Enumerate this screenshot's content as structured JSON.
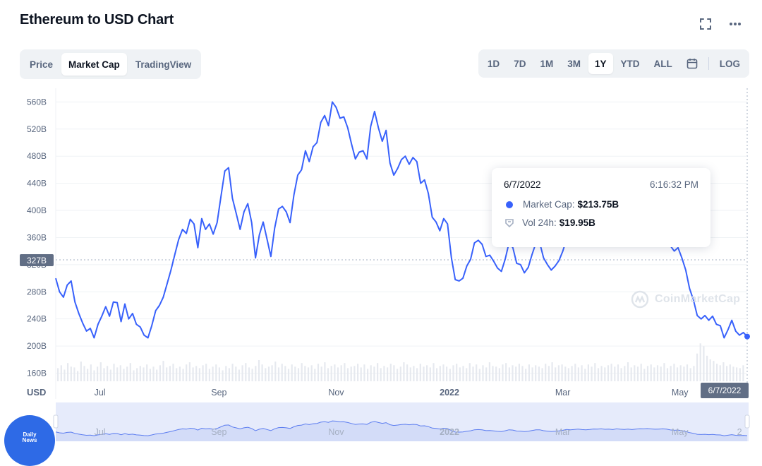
{
  "title": "Ethereum to USD Chart",
  "icons": {
    "expand": "expand-icon",
    "more": "more-icon",
    "calendar": "calendar-icon"
  },
  "view_tabs": [
    {
      "label": "Price",
      "active": false
    },
    {
      "label": "Market Cap",
      "active": true
    },
    {
      "label": "TradingView",
      "active": false
    }
  ],
  "range_tabs": [
    {
      "label": "1D",
      "active": false
    },
    {
      "label": "7D",
      "active": false
    },
    {
      "label": "1M",
      "active": false
    },
    {
      "label": "3M",
      "active": false
    },
    {
      "label": "1Y",
      "active": true
    },
    {
      "label": "YTD",
      "active": false
    },
    {
      "label": "ALL",
      "active": false
    }
  ],
  "log_label": "LOG",
  "currency_label": "USD",
  "crosshair_value": "327B",
  "crosshair_date": "6/7/2022",
  "tooltip": {
    "date": "6/7/2022",
    "time": "6:16:32 PM",
    "market_cap_label": "Market Cap:",
    "market_cap_value": "$213.75B",
    "volume_label": "Vol 24h:",
    "volume_value": "$19.95B"
  },
  "watermark": "CoinMarketCap",
  "badge": {
    "line1": "Daily",
    "line2": "News"
  },
  "colors": {
    "line": "#3861fb",
    "volume": "#e6e9ef",
    "navigator_fill": "#e6ebfb",
    "grid": "#eff2f5"
  },
  "chart_data": {
    "type": "line",
    "title": "Ethereum to USD Chart",
    "ylabel": "USD",
    "y_ticks": [
      "160B",
      "200B",
      "240B",
      "280B",
      "320B",
      "360B",
      "400B",
      "440B",
      "480B",
      "520B",
      "560B"
    ],
    "y_tick_values": [
      160,
      200,
      240,
      280,
      320,
      360,
      400,
      440,
      480,
      520,
      560
    ],
    "x_ticks": [
      "Jul",
      "Sep",
      "Nov",
      "2022",
      "Mar",
      "May"
    ],
    "x_tick_days": [
      23,
      85,
      146,
      205,
      264,
      325
    ],
    "navigator_ticks": [
      "Jul",
      "Sep",
      "Nov",
      "2022",
      "Mar",
      "May",
      "2"
    ],
    "ylim": [
      148,
      575
    ],
    "xlim_days": [
      0,
      360
    ],
    "grid": true,
    "series": [
      {
        "name": "Market Cap",
        "unit": "B USD",
        "points": [
          [
            0,
            300
          ],
          [
            2,
            280
          ],
          [
            4,
            272
          ],
          [
            6,
            290
          ],
          [
            8,
            296
          ],
          [
            10,
            265
          ],
          [
            12,
            248
          ],
          [
            14,
            234
          ],
          [
            16,
            222
          ],
          [
            18,
            226
          ],
          [
            20,
            212
          ],
          [
            22,
            232
          ],
          [
            24,
            244
          ],
          [
            26,
            258
          ],
          [
            28,
            244
          ],
          [
            30,
            265
          ],
          [
            32,
            264
          ],
          [
            34,
            236
          ],
          [
            36,
            262
          ],
          [
            38,
            240
          ],
          [
            40,
            248
          ],
          [
            42,
            232
          ],
          [
            44,
            228
          ],
          [
            46,
            216
          ],
          [
            48,
            212
          ],
          [
            50,
            230
          ],
          [
            52,
            252
          ],
          [
            54,
            260
          ],
          [
            56,
            272
          ],
          [
            58,
            292
          ],
          [
            60,
            312
          ],
          [
            62,
            335
          ],
          [
            64,
            357
          ],
          [
            66,
            372
          ],
          [
            68,
            366
          ],
          [
            70,
            387
          ],
          [
            72,
            380
          ],
          [
            74,
            345
          ],
          [
            76,
            388
          ],
          [
            78,
            372
          ],
          [
            80,
            380
          ],
          [
            82,
            365
          ],
          [
            84,
            382
          ],
          [
            86,
            420
          ],
          [
            88,
            458
          ],
          [
            90,
            463
          ],
          [
            92,
            418
          ],
          [
            94,
            395
          ],
          [
            96,
            372
          ],
          [
            98,
            398
          ],
          [
            100,
            410
          ],
          [
            102,
            382
          ],
          [
            104,
            330
          ],
          [
            106,
            364
          ],
          [
            108,
            383
          ],
          [
            110,
            358
          ],
          [
            112,
            332
          ],
          [
            114,
            374
          ],
          [
            116,
            402
          ],
          [
            118,
            406
          ],
          [
            120,
            398
          ],
          [
            122,
            382
          ],
          [
            124,
            423
          ],
          [
            126,
            452
          ],
          [
            128,
            460
          ],
          [
            130,
            488
          ],
          [
            132,
            472
          ],
          [
            134,
            494
          ],
          [
            136,
            500
          ],
          [
            138,
            530
          ],
          [
            140,
            540
          ],
          [
            142,
            525
          ],
          [
            144,
            560
          ],
          [
            146,
            552
          ],
          [
            148,
            536
          ],
          [
            150,
            538
          ],
          [
            152,
            522
          ],
          [
            154,
            498
          ],
          [
            156,
            476
          ],
          [
            158,
            486
          ],
          [
            160,
            488
          ],
          [
            162,
            476
          ],
          [
            164,
            524
          ],
          [
            166,
            546
          ],
          [
            168,
            522
          ],
          [
            170,
            502
          ],
          [
            172,
            518
          ],
          [
            174,
            470
          ],
          [
            176,
            452
          ],
          [
            178,
            462
          ],
          [
            180,
            475
          ],
          [
            182,
            480
          ],
          [
            184,
            468
          ],
          [
            186,
            478
          ],
          [
            188,
            472
          ],
          [
            190,
            440
          ],
          [
            192,
            445
          ],
          [
            194,
            425
          ],
          [
            196,
            390
          ],
          [
            198,
            383
          ],
          [
            200,
            370
          ],
          [
            202,
            388
          ],
          [
            204,
            380
          ],
          [
            206,
            330
          ],
          [
            208,
            298
          ],
          [
            210,
            296
          ],
          [
            212,
            300
          ],
          [
            214,
            318
          ],
          [
            216,
            328
          ],
          [
            218,
            352
          ],
          [
            220,
            356
          ],
          [
            222,
            350
          ],
          [
            224,
            332
          ],
          [
            226,
            334
          ],
          [
            228,
            325
          ],
          [
            230,
            315
          ],
          [
            232,
            310
          ],
          [
            234,
            328
          ],
          [
            236,
            352
          ],
          [
            238,
            345
          ],
          [
            240,
            322
          ],
          [
            242,
            320
          ],
          [
            244,
            308
          ],
          [
            246,
            316
          ],
          [
            248,
            335
          ],
          [
            250,
            352
          ],
          [
            252,
            352
          ],
          [
            254,
            330
          ],
          [
            256,
            320
          ],
          [
            258,
            312
          ],
          [
            260,
            318
          ],
          [
            262,
            326
          ],
          [
            264,
            340
          ],
          [
            266,
            358
          ],
          [
            268,
            350
          ],
          [
            270,
            360
          ],
          [
            272,
            366
          ],
          [
            274,
            356
          ],
          [
            276,
            352
          ],
          [
            278,
            358
          ],
          [
            280,
            370
          ],
          [
            282,
            368
          ],
          [
            284,
            372
          ],
          [
            286,
            362
          ],
          [
            288,
            368
          ],
          [
            290,
            356
          ],
          [
            292,
            372
          ],
          [
            294,
            364
          ],
          [
            296,
            360
          ],
          [
            298,
            368
          ],
          [
            300,
            356
          ],
          [
            302,
            368
          ],
          [
            304,
            375
          ],
          [
            306,
            372
          ],
          [
            308,
            380
          ],
          [
            310,
            371
          ],
          [
            312,
            364
          ],
          [
            314,
            368
          ],
          [
            316,
            372
          ],
          [
            318,
            366
          ],
          [
            320,
            348
          ],
          [
            322,
            340
          ],
          [
            324,
            345
          ],
          [
            326,
            330
          ],
          [
            328,
            312
          ],
          [
            330,
            285
          ],
          [
            332,
            268
          ],
          [
            334,
            245
          ],
          [
            336,
            240
          ],
          [
            338,
            245
          ],
          [
            340,
            238
          ],
          [
            342,
            244
          ],
          [
            344,
            232
          ],
          [
            346,
            230
          ],
          [
            348,
            212
          ],
          [
            350,
            224
          ],
          [
            352,
            238
          ],
          [
            354,
            222
          ],
          [
            356,
            216
          ],
          [
            358,
            220
          ],
          [
            360,
            214
          ]
        ]
      }
    ],
    "volume_series": {
      "name": "Vol 24h",
      "ylim": [
        0,
        60
      ],
      "values": [
        18,
        22,
        16,
        25,
        20,
        19,
        14,
        27,
        21,
        17,
        23,
        15,
        20,
        26,
        18,
        21,
        16,
        24,
        19,
        22,
        17,
        20,
        25,
        15,
        18,
        21,
        19,
        23,
        17,
        20,
        16,
        22,
        28,
        19,
        21,
        24,
        18,
        20,
        17,
        23,
        26,
        19,
        21,
        18,
        22,
        24,
        17,
        20,
        23,
        19,
        15,
        21,
        18,
        24,
        20,
        16,
        22,
        25,
        19,
        17,
        21,
        29,
        23,
        18,
        20,
        22,
        27,
        19,
        24,
        21,
        17,
        23,
        20,
        18,
        25,
        21,
        19,
        22,
        17,
        24,
        20,
        26,
        18,
        21,
        23,
        19,
        22,
        25,
        18,
        20,
        21,
        24,
        19,
        23,
        17,
        22,
        20,
        25,
        18,
        21,
        19,
        24,
        22,
        17,
        20,
        26,
        23,
        19,
        21,
        18,
        24,
        20,
        22,
        19,
        25,
        18,
        21,
        23,
        20,
        17,
        22,
        24,
        19,
        21,
        18,
        25,
        20,
        23,
        17,
        22,
        19,
        26,
        21,
        20,
        18,
        23,
        25,
        19,
        22,
        20,
        24,
        21,
        17,
        23,
        19,
        22,
        20,
        18,
        24,
        21,
        26,
        19,
        22,
        23,
        20,
        18,
        21,
        24,
        19,
        22,
        17,
        23,
        20,
        25,
        18,
        21,
        19,
        22,
        24,
        20,
        23,
        18,
        21,
        26,
        19,
        22,
        20,
        24,
        17,
        21,
        23,
        19,
        22,
        20,
        25,
        18,
        21,
        24,
        19,
        22,
        20,
        23,
        18,
        21,
        38,
        52,
        48,
        35,
        30,
        28,
        24,
        22,
        26,
        21,
        23,
        20,
        19,
        18,
        22
      ]
    }
  }
}
